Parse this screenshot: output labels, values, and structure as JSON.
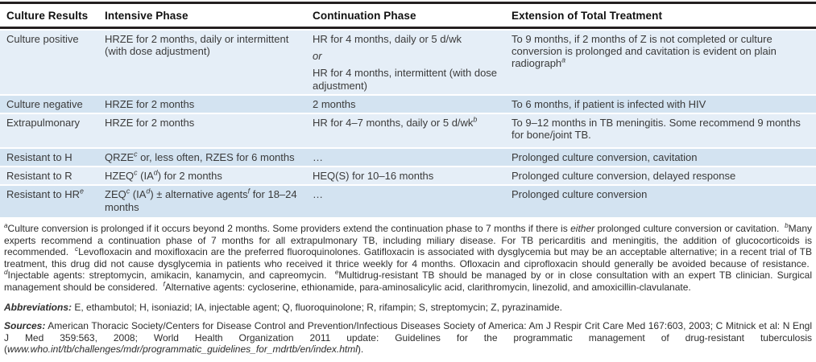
{
  "colors": {
    "stripe_light": "#e5eef7",
    "stripe_dark": "#d3e3f1",
    "rule": "#231f20",
    "body_text": "#3a3a3a"
  },
  "table": {
    "headers": [
      "Culture Results",
      "Intensive Phase",
      "Continuation Phase",
      "Extension of Total Treatment"
    ],
    "rows": [
      {
        "cells": [
          [
            [
              "Culture positive"
            ]
          ],
          [
            [
              "HRZE for 2 months, daily or intermittent (with dose adjustment)"
            ]
          ],
          [
            [
              "HR for 4 months, daily or 5 d/wk"
            ],
            [
              {
                "t": "or",
                "i": true
              }
            ],
            [
              "HR for 4 months, intermittent (with dose adjustment)"
            ]
          ],
          [
            [
              "To 9 months, if 2 months of Z is not completed or culture conversion is prolonged and cavitation is evident on plain radiograph",
              {
                "t": "a",
                "sup": true
              }
            ]
          ]
        ]
      },
      {
        "cells": [
          [
            [
              "Culture negative"
            ]
          ],
          [
            [
              "HRZE for 2 months"
            ]
          ],
          [
            [
              "2 months"
            ]
          ],
          [
            [
              "To 6 months, if patient is infected with HIV"
            ]
          ]
        ]
      },
      {
        "cells": [
          [
            [
              "Extrapulmonary"
            ]
          ],
          [
            [
              "HRZE for 2 months"
            ]
          ],
          [
            [
              "HR for 4–7 months, daily or 5 d/wk",
              {
                "t": "b",
                "sup": true
              }
            ]
          ],
          [
            [
              "To 9–12 months in TB meningitis. Some recommend 9 months for bone/joint TB."
            ]
          ]
        ]
      },
      {
        "cells": [
          [
            [
              "Resistant to H"
            ]
          ],
          [
            [
              "QRZE",
              {
                "t": "c",
                "sup": true
              },
              " or, less often, RZES for 6 months"
            ]
          ],
          [
            [
              "…"
            ]
          ],
          [
            [
              "Prolonged culture conversion, cavitation"
            ]
          ]
        ]
      },
      {
        "cells": [
          [
            [
              "Resistant to R"
            ]
          ],
          [
            [
              "HZEQ",
              {
                "t": "c",
                "sup": true
              },
              " (IA",
              {
                "t": "d",
                "sup": true
              },
              ") for 2 months"
            ]
          ],
          [
            [
              "HEQ(S) for 10–16 months"
            ]
          ],
          [
            [
              "Prolonged culture conversion, delayed response"
            ]
          ]
        ]
      },
      {
        "cells": [
          [
            [
              "Resistant to HR",
              {
                "t": "e",
                "sup": true
              }
            ]
          ],
          [
            [
              "ZEQ",
              {
                "t": "c",
                "sup": true
              },
              " (IA",
              {
                "t": "d",
                "sup": true
              },
              ") ± alternative agents",
              {
                "t": "f",
                "sup": true
              },
              " for 18–24 months"
            ]
          ],
          [
            [
              "…"
            ]
          ],
          [
            [
              "Prolonged culture conversion"
            ]
          ]
        ]
      }
    ]
  },
  "footnotes": [
    [
      {
        "t": "a",
        "sup": true
      },
      "Culture conversion is prolonged if it occurs beyond 2 months. Some providers extend the continuation phase to 7 months if there is ",
      {
        "t": "either",
        "i": true
      },
      " prolonged culture conversion or cavitation.  ",
      {
        "t": "b",
        "sup": true
      },
      "Many experts recommend a continuation phase of 7 months for all extrapulmonary TB, including miliary disease. For TB pericarditis and meningitis, the addition of glucocorticoids is recommended.  ",
      {
        "t": "c",
        "sup": true
      },
      "Levofloxacin and moxifloxacin are the preferred fluoroquinolones. Gatifloxacin is associated with dysglycemia but may be an acceptable alternative; in a recent trial of TB treatment, this drug did not cause dysglycemia in patients who received it thrice weekly for 4 months. Ofloxacin and ciprofloxacin should generally be avoided because of resistance.  ",
      {
        "t": "d",
        "sup": true
      },
      "Injectable agents: streptomycin, amikacin, kanamycin, and capreomycin.  ",
      {
        "t": "e",
        "sup": true
      },
      "Multidrug-resistant TB should be managed by or in close consultation with an expert TB clinician. Surgical management should be considered.  ",
      {
        "t": "f",
        "sup": true
      },
      "Alternative agents: cycloserine, ethionamide, para-aminosalicylic acid, clarithromycin, linezolid, and amoxicillin-clavulanate."
    ]
  ],
  "abbreviations": [
    [
      {
        "t": "Abbreviations:",
        "b": true,
        "i": true
      },
      " E, ethambutol; H, isoniazid; IA, injectable agent; Q, fluoroquinolone; R, rifampin; S, streptomycin; Z, pyrazinamide."
    ]
  ],
  "sources": [
    [
      {
        "t": "Sources:",
        "b": true,
        "i": true
      },
      " American Thoracic Society/Centers for Disease Control and Prevention/Infectious Diseases Society of America: Am J Respir Crit Care Med 167:603, 2003; C Mitnick et al: N Engl J Med 359:563, 2008; World Health Organization 2011 update: Guidelines for the programmatic management of drug-resistant tuberculosis (",
      {
        "t": "www.who.int/tb/challenges/mdr/programmatic_guidelines_for_mdrtb/en/index.html",
        "i": true,
        "name": "who-url"
      },
      ")."
    ]
  ]
}
